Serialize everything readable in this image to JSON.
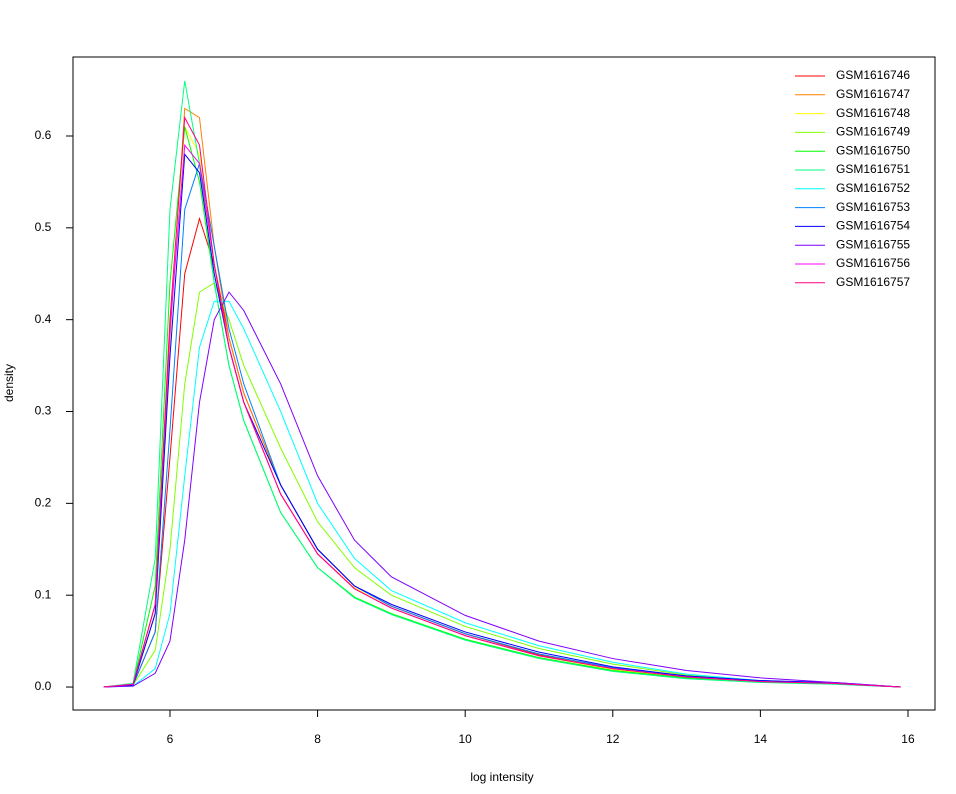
{
  "chart_data": {
    "type": "line",
    "xlabel": "log intensity",
    "ylabel": "density",
    "x": [
      5.1,
      5.5,
      5.8,
      6.0,
      6.2,
      6.4,
      6.6,
      6.8,
      7.0,
      7.5,
      8,
      8.5,
      9,
      10,
      11,
      12,
      13,
      14,
      15,
      15.9
    ],
    "xlim": [
      4.686,
      16.366
    ],
    "xticks": [
      6,
      8,
      10,
      12,
      14,
      16
    ],
    "ylim": [
      -0.025,
      0.686
    ],
    "yticks": [
      {
        "value": 0,
        "label": "0.0"
      },
      0.1,
      0.2,
      0.3,
      0.4,
      0.5,
      0.6
    ],
    "legend": "top-right",
    "series": [
      {
        "name": "GSM1616746",
        "color": "#FF0000",
        "values": [
          0,
          0.002,
          0.06,
          0.25,
          0.45,
          0.51,
          0.46,
          0.38,
          0.32,
          0.22,
          0.15,
          0.11,
          0.088,
          0.058,
          0.035,
          0.02,
          0.011,
          0.006,
          0.004,
          0
        ]
      },
      {
        "name": "GSM1616747",
        "color": "#FF8000",
        "values": [
          0,
          0.003,
          0.08,
          0.38,
          0.63,
          0.62,
          0.48,
          0.38,
          0.32,
          0.22,
          0.15,
          0.11,
          0.088,
          0.058,
          0.036,
          0.02,
          0.011,
          0.006,
          0.004,
          0
        ]
      },
      {
        "name": "GSM1616748",
        "color": "#FFFF00",
        "values": [
          0,
          0.003,
          0.09,
          0.4,
          0.61,
          0.58,
          0.46,
          0.37,
          0.31,
          0.21,
          0.145,
          0.108,
          0.086,
          0.056,
          0.034,
          0.019,
          0.01,
          0.006,
          0.004,
          0
        ]
      },
      {
        "name": "GSM1616749",
        "color": "#80FF00",
        "values": [
          0,
          0.002,
          0.04,
          0.15,
          0.33,
          0.43,
          0.44,
          0.4,
          0.35,
          0.26,
          0.18,
          0.13,
          0.1,
          0.066,
          0.042,
          0.025,
          0.013,
          0.007,
          0.004,
          0
        ]
      },
      {
        "name": "GSM1616750",
        "color": "#00FF00",
        "values": [
          0,
          0.003,
          0.11,
          0.44,
          0.61,
          0.55,
          0.44,
          0.35,
          0.29,
          0.19,
          0.13,
          0.098,
          0.08,
          0.052,
          0.032,
          0.018,
          0.01,
          0.006,
          0.004,
          0
        ]
      },
      {
        "name": "GSM1616751",
        "color": "#00FF80",
        "values": [
          0,
          0.004,
          0.14,
          0.52,
          0.66,
          0.57,
          0.44,
          0.35,
          0.29,
          0.19,
          0.13,
          0.097,
          0.079,
          0.051,
          0.031,
          0.017,
          0.009,
          0.005,
          0.003,
          0
        ]
      },
      {
        "name": "GSM1616752",
        "color": "#00FFFF",
        "values": [
          0,
          0.001,
          0.02,
          0.08,
          0.23,
          0.37,
          0.42,
          0.42,
          0.39,
          0.3,
          0.2,
          0.14,
          0.105,
          0.07,
          0.045,
          0.027,
          0.014,
          0.007,
          0.004,
          0
        ]
      },
      {
        "name": "GSM1616753",
        "color": "#0080FF",
        "values": [
          0,
          0.002,
          0.06,
          0.28,
          0.52,
          0.57,
          0.48,
          0.39,
          0.33,
          0.22,
          0.15,
          0.11,
          0.088,
          0.058,
          0.036,
          0.021,
          0.012,
          0.007,
          0.004,
          0
        ]
      },
      {
        "name": "GSM1616754",
        "color": "#0000FF",
        "values": [
          0,
          0.002,
          0.08,
          0.36,
          0.58,
          0.56,
          0.45,
          0.37,
          0.31,
          0.22,
          0.15,
          0.11,
          0.09,
          0.06,
          0.038,
          0.022,
          0.012,
          0.007,
          0.005,
          0
        ]
      },
      {
        "name": "GSM1616755",
        "color": "#8000FF",
        "values": [
          0,
          0.001,
          0.015,
          0.05,
          0.16,
          0.31,
          0.4,
          0.43,
          0.41,
          0.33,
          0.23,
          0.16,
          0.12,
          0.078,
          0.05,
          0.031,
          0.018,
          0.01,
          0.005,
          0
        ]
      },
      {
        "name": "GSM1616756",
        "color": "#FF00FF",
        "values": [
          0,
          0.003,
          0.09,
          0.39,
          0.59,
          0.57,
          0.46,
          0.37,
          0.31,
          0.21,
          0.145,
          0.107,
          0.086,
          0.056,
          0.034,
          0.02,
          0.011,
          0.006,
          0.004,
          0
        ]
      },
      {
        "name": "GSM1616757",
        "color": "#FF0080",
        "values": [
          0,
          0.003,
          0.09,
          0.4,
          0.62,
          0.59,
          0.46,
          0.37,
          0.31,
          0.21,
          0.145,
          0.107,
          0.086,
          0.056,
          0.034,
          0.02,
          0.011,
          0.006,
          0.004,
          0
        ]
      }
    ]
  }
}
